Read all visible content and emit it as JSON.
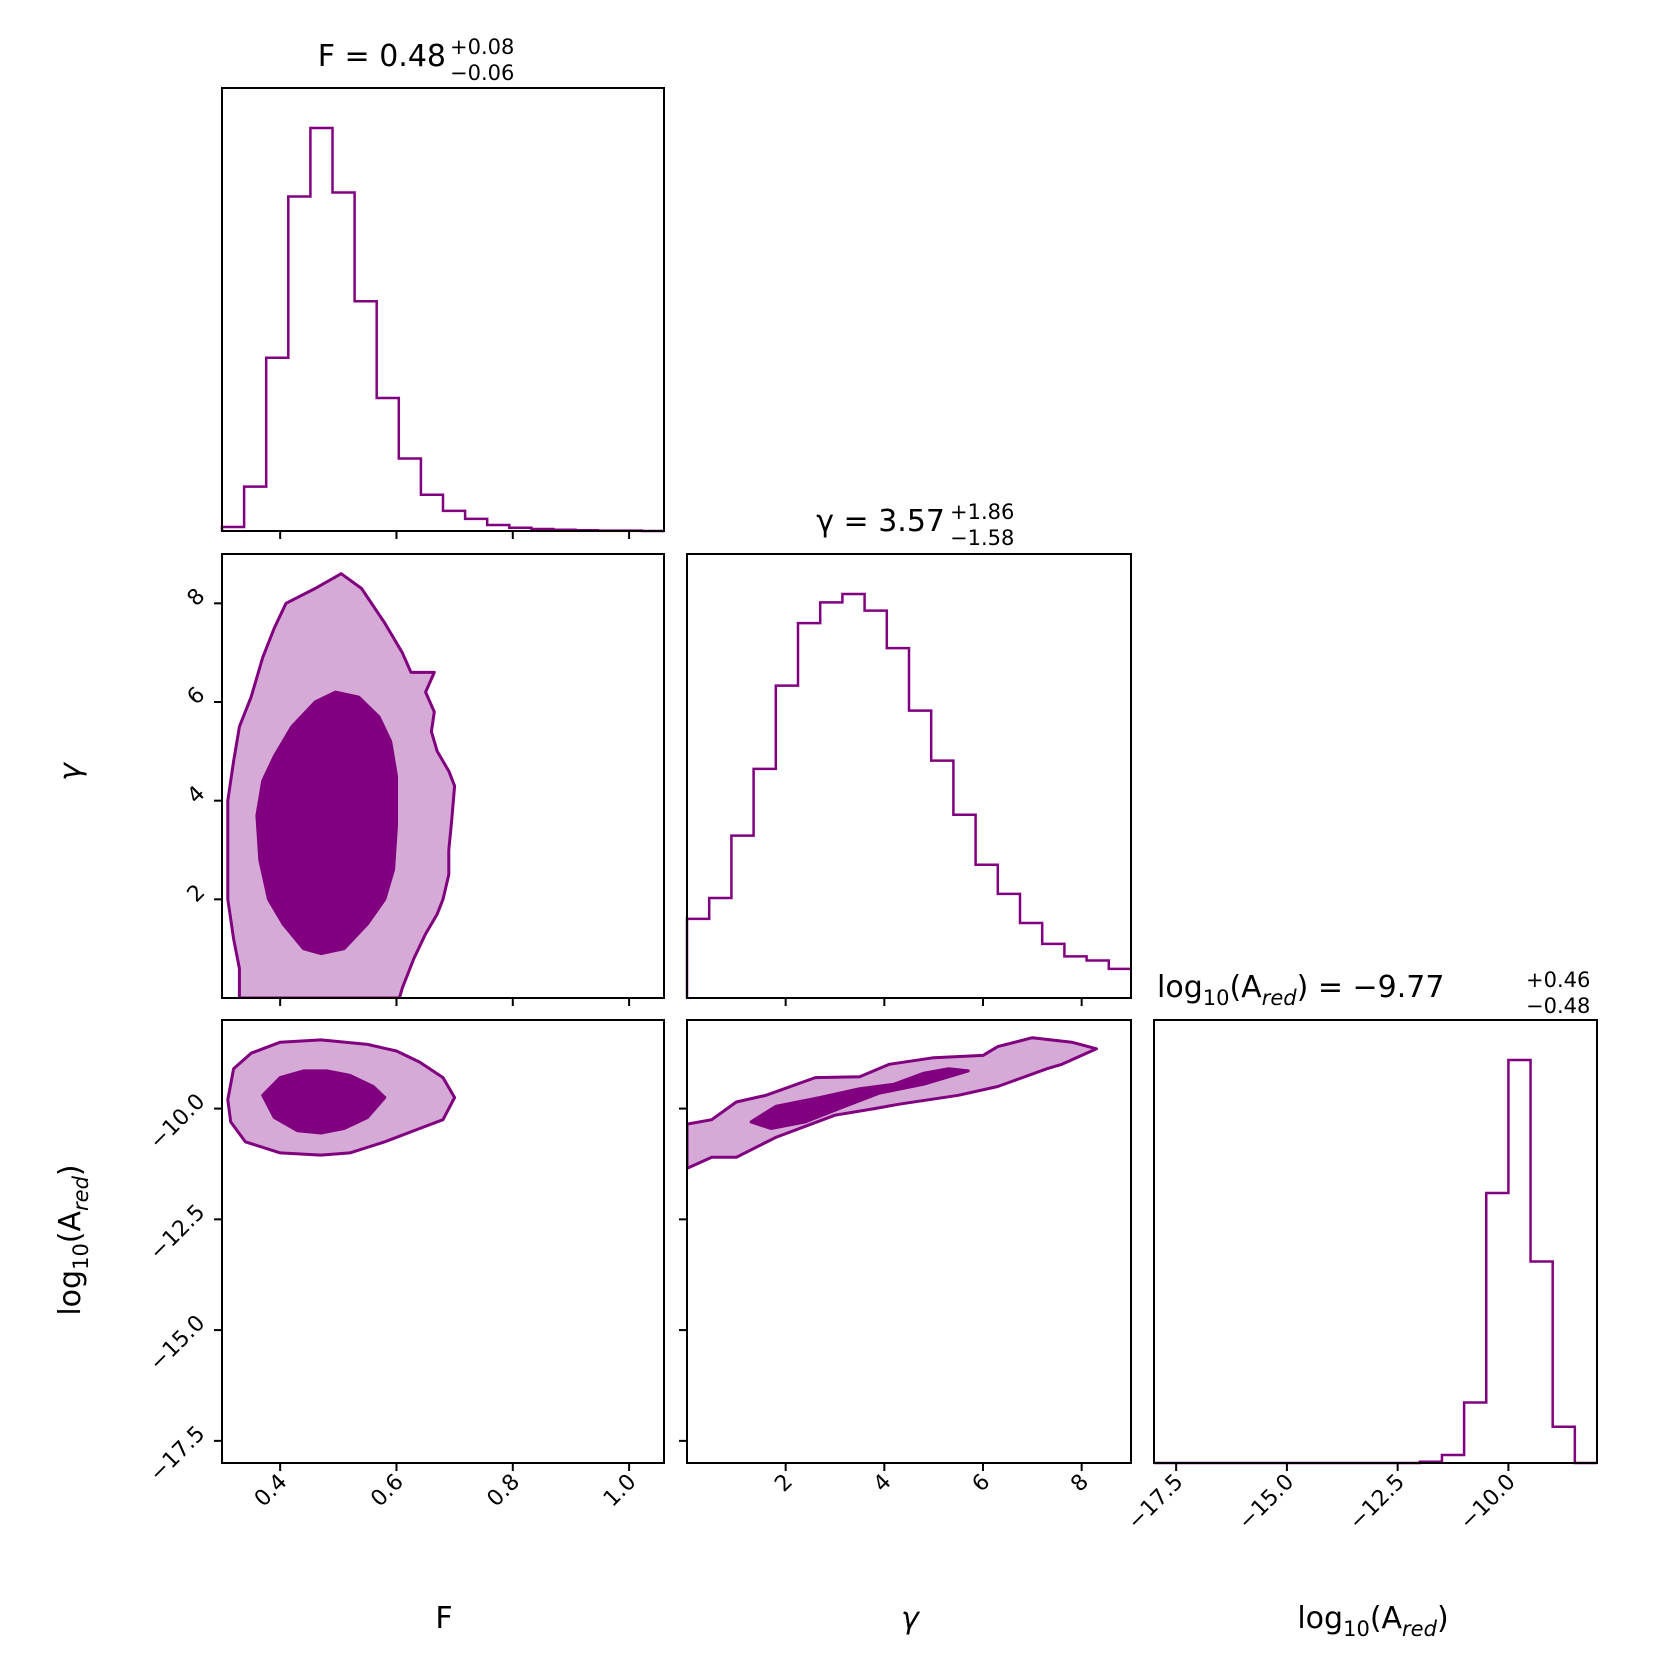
{
  "colors": {
    "line": "#800080",
    "fill_inner": "#800080",
    "fill_outer": "#d6aad6"
  },
  "chart_data": {
    "type": "corner",
    "parameters": [
      {
        "key": "F",
        "label": "F",
        "median": 0.48,
        "plus": "+0.08",
        "minus": "−0.06",
        "title_lhs": "F = 0.48",
        "range": [
          0.3,
          1.06
        ],
        "ticks": [
          0.4,
          0.6,
          0.8,
          1.0
        ],
        "tick_labels": [
          "0.4",
          "0.6",
          "0.8",
          "1.0"
        ]
      },
      {
        "key": "gamma",
        "label": "γ",
        "median": 3.57,
        "plus": "+1.86",
        "minus": "−1.58",
        "title_lhs": "γ = 3.57",
        "range": [
          0.0,
          9.0
        ],
        "ticks": [
          2,
          4,
          6,
          8
        ],
        "tick_labels": [
          "2",
          "4",
          "6",
          "8"
        ]
      },
      {
        "key": "log10_A_red",
        "label": "log₁₀(A_red)",
        "label_base": "log",
        "label_sub": "10",
        "label_paren": "(A",
        "label_sub2": "red",
        "label_close": ")",
        "median": -9.77,
        "plus": "+0.46",
        "minus": "−0.48",
        "title_lhs": " = −9.77",
        "range": [
          -18.0,
          -8.0
        ],
        "ticks": [
          -17.5,
          -15.0,
          -12.5,
          -10.0
        ],
        "tick_labels": [
          "−17.5",
          "−15.0",
          "−12.5",
          "−10.0"
        ]
      }
    ],
    "histograms": {
      "F": {
        "bins": [
          0.3,
          0.338,
          0.376,
          0.414,
          0.452,
          0.49,
          0.528,
          0.566,
          0.604,
          0.642,
          0.68,
          0.718,
          0.756,
          0.794,
          0.832,
          0.87,
          0.908,
          0.946,
          0.984,
          1.022,
          1.06
        ],
        "counts": [
          0.01,
          0.11,
          0.43,
          0.83,
          1.0,
          0.84,
          0.57,
          0.33,
          0.18,
          0.09,
          0.05,
          0.03,
          0.015,
          0.008,
          0.005,
          0.003,
          0.002,
          0.001,
          0.001,
          0.0
        ]
      },
      "gamma": {
        "bins": [
          0.0,
          0.45,
          0.9,
          1.35,
          1.8,
          2.25,
          2.7,
          3.15,
          3.6,
          4.05,
          4.5,
          4.95,
          5.4,
          5.85,
          6.3,
          6.75,
          7.2,
          7.65,
          8.1,
          8.55,
          9.0
        ],
        "counts": [
          0.19,
          0.24,
          0.39,
          0.55,
          0.75,
          0.9,
          0.95,
          0.97,
          0.93,
          0.84,
          0.69,
          0.57,
          0.44,
          0.32,
          0.25,
          0.18,
          0.13,
          0.1,
          0.09,
          0.07
        ]
      },
      "log10_A_red": {
        "bins": [
          -18.0,
          -17.5,
          -17.0,
          -16.5,
          -16.0,
          -15.5,
          -15.0,
          -14.5,
          -14.0,
          -13.5,
          -13.0,
          -12.5,
          -12.0,
          -11.5,
          -11.0,
          -10.5,
          -10.0,
          -9.5,
          -9.0,
          -8.5,
          -8.0
        ],
        "counts": [
          0.0,
          0.0,
          0.0,
          0.0,
          0.0,
          0.0,
          0.0,
          0.0,
          0.0,
          0.0,
          0.0,
          0.0,
          0.003,
          0.02,
          0.15,
          0.67,
          1.0,
          0.5,
          0.09,
          0.0
        ]
      }
    },
    "contours": {
      "gamma_vs_F": {
        "outer": [
          [
            0.33,
            0.0
          ],
          [
            0.33,
            0.6
          ],
          [
            0.32,
            1.2
          ],
          [
            0.31,
            2.0
          ],
          [
            0.31,
            3.0
          ],
          [
            0.31,
            4.0
          ],
          [
            0.32,
            4.8
          ],
          [
            0.33,
            5.5
          ],
          [
            0.35,
            6.1
          ],
          [
            0.37,
            6.9
          ],
          [
            0.39,
            7.5
          ],
          [
            0.41,
            8.0
          ],
          [
            0.46,
            8.3
          ],
          [
            0.505,
            8.6
          ],
          [
            0.54,
            8.3
          ],
          [
            0.58,
            7.6
          ],
          [
            0.61,
            7.0
          ],
          [
            0.625,
            6.6
          ],
          [
            0.665,
            6.6
          ],
          [
            0.65,
            6.2
          ],
          [
            0.665,
            5.8
          ],
          [
            0.66,
            5.4
          ],
          [
            0.67,
            5.0
          ],
          [
            0.69,
            4.6
          ],
          [
            0.7,
            4.3
          ],
          [
            0.695,
            3.6
          ],
          [
            0.69,
            3.0
          ],
          [
            0.69,
            2.5
          ],
          [
            0.68,
            2.0
          ],
          [
            0.67,
            1.7
          ],
          [
            0.65,
            1.3
          ],
          [
            0.63,
            0.8
          ],
          [
            0.61,
            0.2
          ],
          [
            0.605,
            0.0
          ]
        ],
        "inner": [
          [
            0.36,
            3.7
          ],
          [
            0.365,
            2.8
          ],
          [
            0.38,
            2.0
          ],
          [
            0.405,
            1.5
          ],
          [
            0.44,
            1.0
          ],
          [
            0.47,
            0.9
          ],
          [
            0.51,
            1.0
          ],
          [
            0.55,
            1.5
          ],
          [
            0.58,
            2.0
          ],
          [
            0.595,
            2.6
          ],
          [
            0.6,
            3.5
          ],
          [
            0.6,
            4.5
          ],
          [
            0.59,
            5.2
          ],
          [
            0.57,
            5.7
          ],
          [
            0.535,
            6.1
          ],
          [
            0.495,
            6.2
          ],
          [
            0.46,
            6.0
          ],
          [
            0.42,
            5.5
          ],
          [
            0.39,
            4.9
          ],
          [
            0.37,
            4.4
          ]
        ]
      },
      "A_vs_F": {
        "outer": [
          [
            0.31,
            -9.8
          ],
          [
            0.32,
            -9.1
          ],
          [
            0.35,
            -8.75
          ],
          [
            0.4,
            -8.5
          ],
          [
            0.47,
            -8.45
          ],
          [
            0.55,
            -8.55
          ],
          [
            0.6,
            -8.7
          ],
          [
            0.64,
            -8.95
          ],
          [
            0.68,
            -9.3
          ],
          [
            0.7,
            -9.75
          ],
          [
            0.68,
            -10.25
          ],
          [
            0.64,
            -10.45
          ],
          [
            0.58,
            -10.75
          ],
          [
            0.52,
            -11.0
          ],
          [
            0.47,
            -11.05
          ],
          [
            0.4,
            -11.0
          ],
          [
            0.34,
            -10.75
          ],
          [
            0.315,
            -10.3
          ]
        ],
        "inner": [
          [
            0.37,
            -9.7
          ],
          [
            0.4,
            -9.3
          ],
          [
            0.44,
            -9.15
          ],
          [
            0.48,
            -9.15
          ],
          [
            0.52,
            -9.25
          ],
          [
            0.56,
            -9.5
          ],
          [
            0.58,
            -9.75
          ],
          [
            0.55,
            -10.2
          ],
          [
            0.51,
            -10.45
          ],
          [
            0.47,
            -10.55
          ],
          [
            0.43,
            -10.5
          ],
          [
            0.39,
            -10.2
          ]
        ]
      },
      "A_vs_gamma": {
        "outer": [
          [
            0.0,
            -10.35
          ],
          [
            0.5,
            -10.25
          ],
          [
            1.0,
            -9.85
          ],
          [
            1.6,
            -9.7
          ],
          [
            2.6,
            -9.3
          ],
          [
            3.5,
            -9.28
          ],
          [
            4.1,
            -9.0
          ],
          [
            5.0,
            -8.85
          ],
          [
            6.0,
            -8.8
          ],
          [
            6.3,
            -8.6
          ],
          [
            7.0,
            -8.4
          ],
          [
            7.8,
            -8.5
          ],
          [
            8.3,
            -8.65
          ],
          [
            7.6,
            -9.0
          ],
          [
            7.3,
            -9.1
          ],
          [
            6.3,
            -9.5
          ],
          [
            5.5,
            -9.7
          ],
          [
            4.3,
            -9.9
          ],
          [
            3.8,
            -10.0
          ],
          [
            3.0,
            -10.15
          ],
          [
            1.8,
            -10.65
          ],
          [
            1.0,
            -11.1
          ],
          [
            0.5,
            -11.1
          ],
          [
            0.0,
            -11.35
          ]
        ],
        "inner": [
          [
            1.3,
            -10.3
          ],
          [
            1.8,
            -9.95
          ],
          [
            2.7,
            -9.75
          ],
          [
            3.5,
            -9.55
          ],
          [
            4.2,
            -9.45
          ],
          [
            4.8,
            -9.2
          ],
          [
            5.3,
            -9.1
          ],
          [
            5.7,
            -9.15
          ],
          [
            4.8,
            -9.45
          ],
          [
            3.9,
            -9.65
          ],
          [
            3.2,
            -9.95
          ],
          [
            2.4,
            -10.3
          ],
          [
            1.7,
            -10.45
          ]
        ]
      }
    }
  }
}
